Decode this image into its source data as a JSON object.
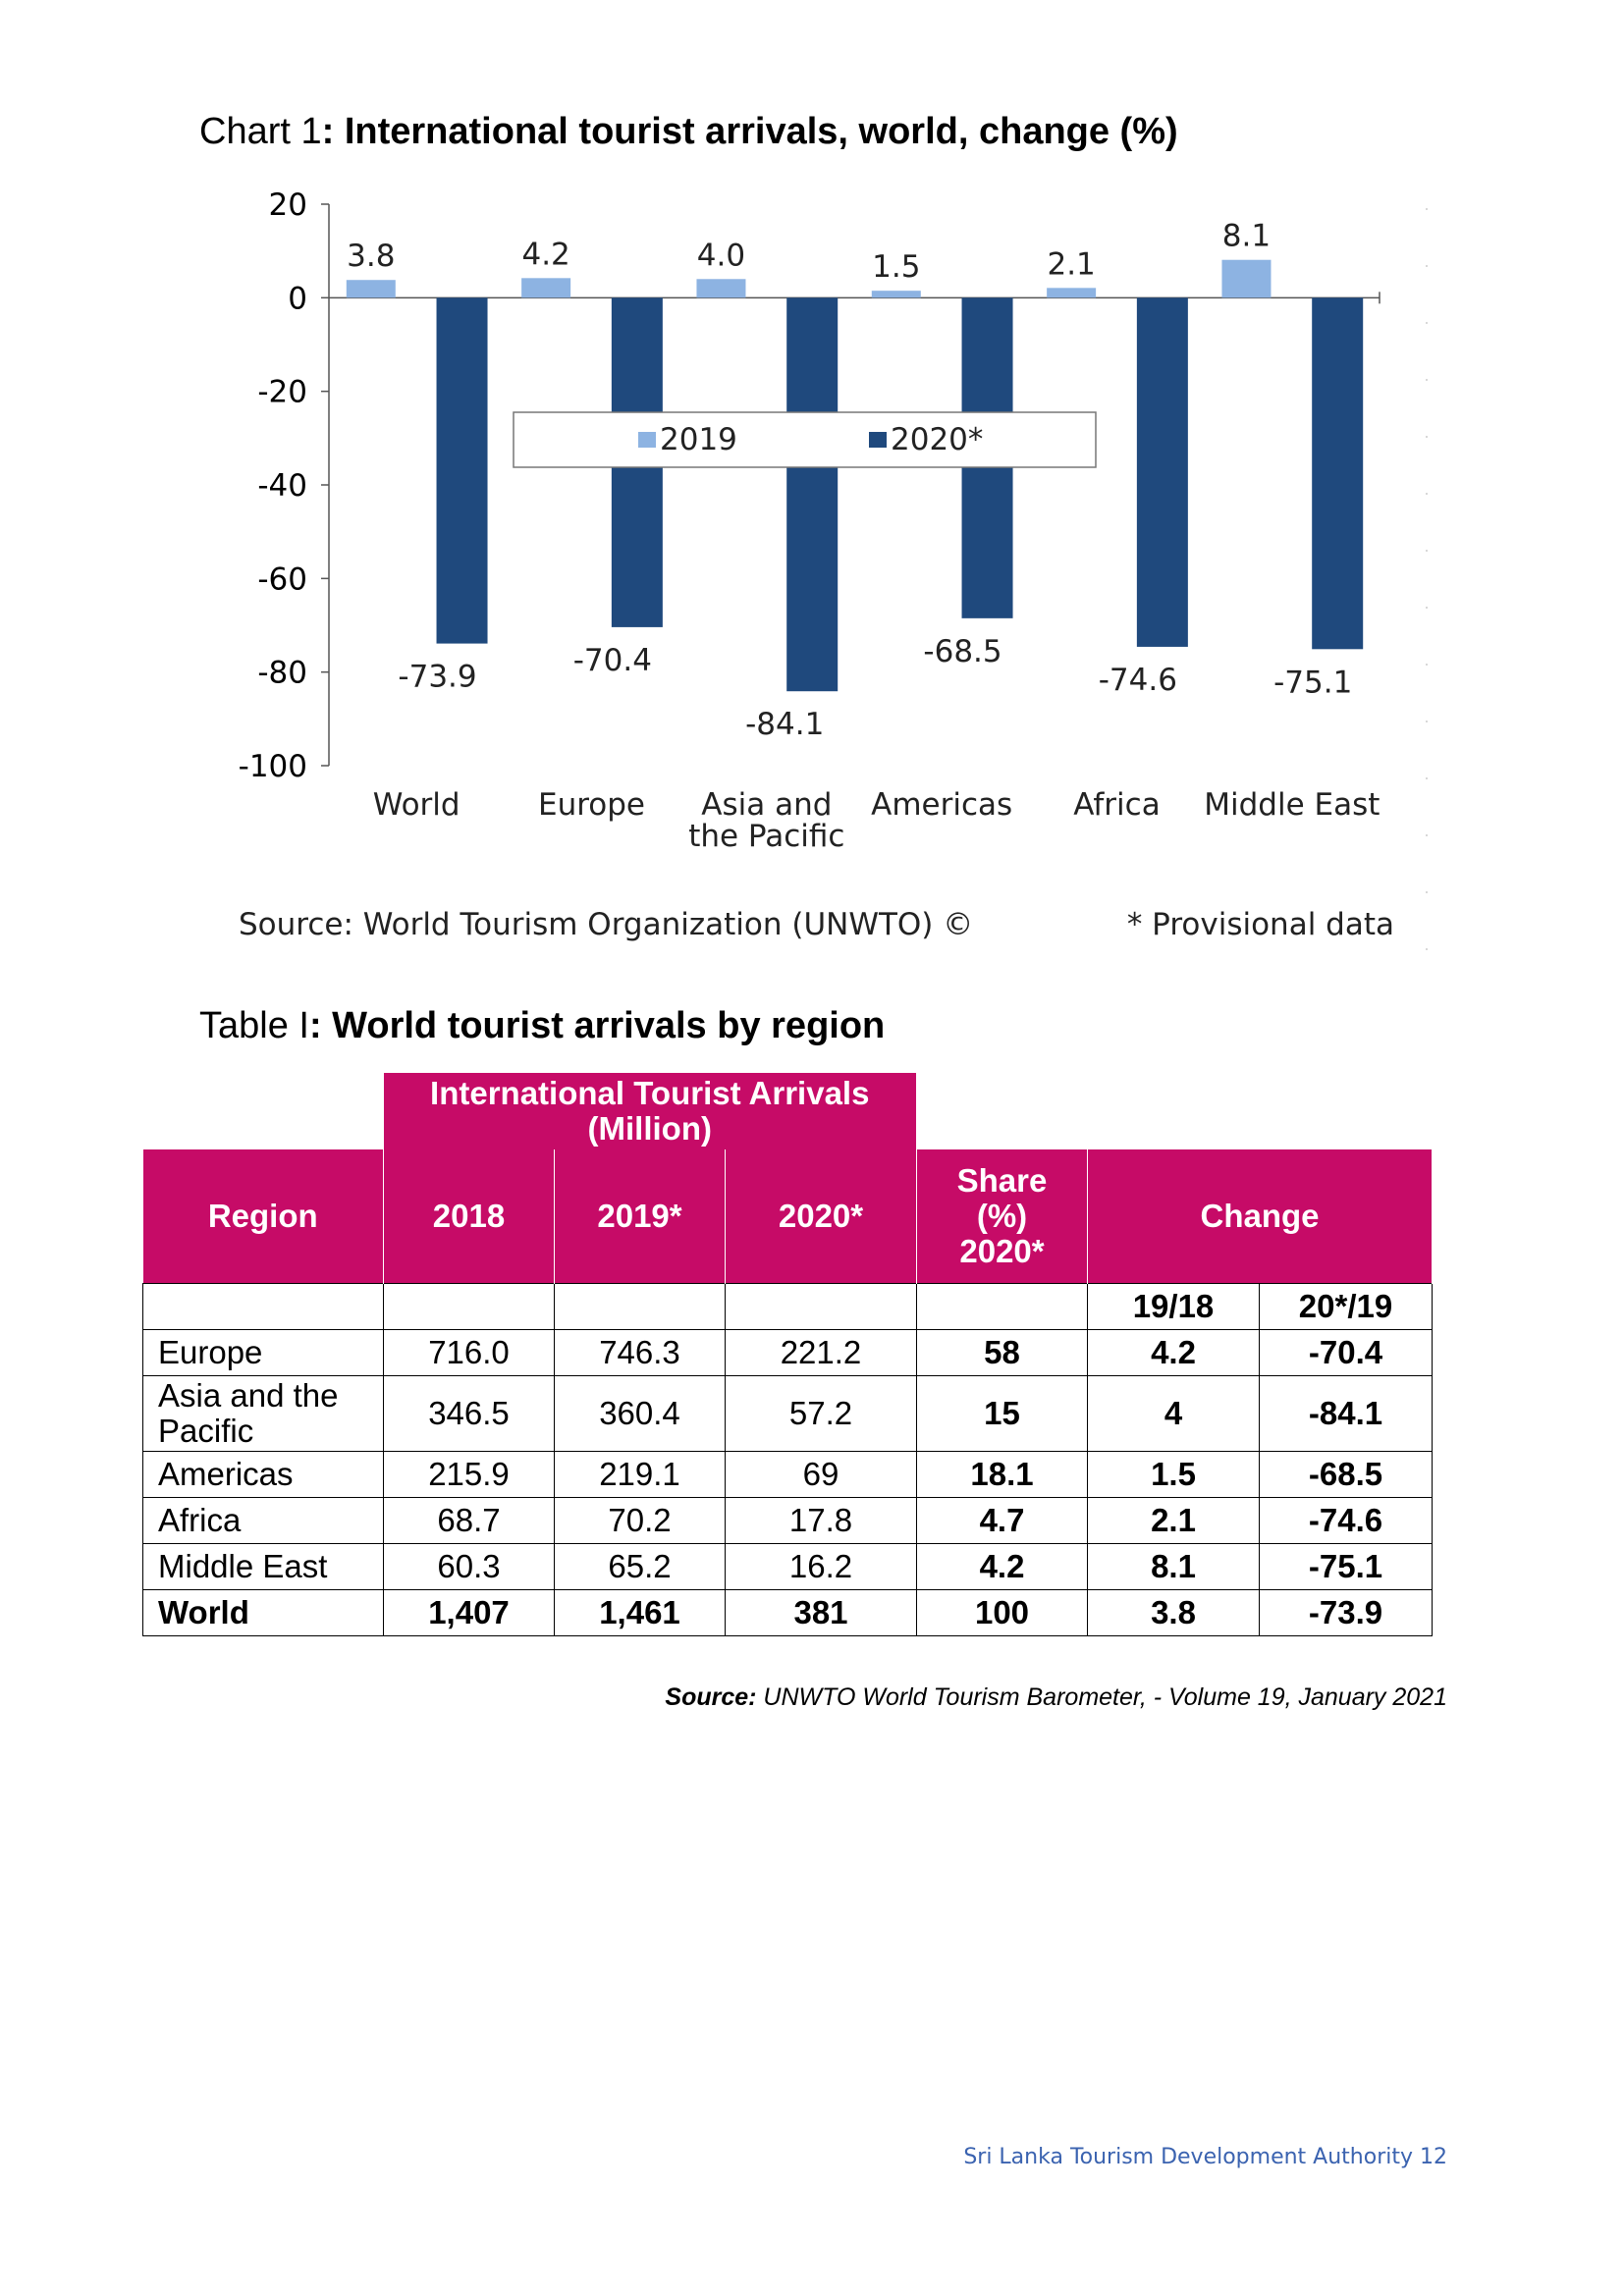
{
  "chart_heading": {
    "prefix": "Chart 1",
    "title": ": International tourist arrivals, world, change (%)"
  },
  "chart_data": {
    "type": "bar",
    "categories": [
      "World",
      "Europe",
      "Asia and the Pacific",
      "Americas",
      "Africa",
      "Middle East"
    ],
    "category_lines": [
      [
        "World"
      ],
      [
        "Europe"
      ],
      [
        "Asia and",
        "the Pacific"
      ],
      [
        "Americas"
      ],
      [
        "Africa"
      ],
      [
        "Middle East"
      ]
    ],
    "series": [
      {
        "name": "2019",
        "values": [
          3.8,
          4.2,
          4.0,
          1.5,
          2.1,
          8.1
        ],
        "labels": [
          "3.8",
          "4.2",
          "4.0",
          "1.5",
          "2.1",
          "8.1"
        ],
        "color": "#8db3e2"
      },
      {
        "name": "2020*",
        "values": [
          -73.9,
          -70.4,
          -84.1,
          -68.5,
          -74.6,
          -75.1
        ],
        "labels": [
          "-73.9",
          "-70.4",
          "-84.1",
          "-68.5",
          "-74.6",
          "-75.1"
        ],
        "color": "#1f497d"
      }
    ],
    "yticks": [
      "20",
      "0",
      "-20",
      "-40",
      "-60",
      "-80",
      "-100"
    ],
    "ylim": [
      -100,
      20
    ],
    "legend_position": "center",
    "source_text": "Source: World Tourism Organization (UNWTO) ©",
    "note_text": "* Provisional data"
  },
  "table_heading": {
    "prefix": "Table I",
    "title": ": World tourist arrivals by region"
  },
  "table": {
    "group_header": "International Tourist Arrivals (Million)",
    "headers": {
      "region": "Region",
      "y2018": "2018",
      "y2019": "2019*",
      "y2020": "2020*",
      "share": "Share (%) 2020*",
      "change": "Change"
    },
    "subheaders": {
      "c1": "19/18",
      "c2": "20*/19"
    },
    "rows": [
      {
        "region": "Europe",
        "y2018": "716.0",
        "y2019": "746.3",
        "y2020": "221.2",
        "share": "58",
        "c1": "4.2",
        "c2": "-70.4"
      },
      {
        "region": "Asia and the Pacific",
        "y2018": "346.5",
        "y2019": "360.4",
        "y2020": "57.2",
        "share": "15",
        "c1": "4",
        "c2": "-84.1"
      },
      {
        "region": "Americas",
        "y2018": "215.9",
        "y2019": "219.1",
        "y2020": "69",
        "share": "18.1",
        "c1": "1.5",
        "c2": "-68.5"
      },
      {
        "region": "Africa",
        "y2018": "68.7",
        "y2019": "70.2",
        "y2020": "17.8",
        "share": "4.7",
        "c1": "2.1",
        "c2": "-74.6"
      },
      {
        "region": "Middle East",
        "y2018": "60.3",
        "y2019": "65.2",
        "y2020": "16.2",
        "share": "4.2",
        "c1": "8.1",
        "c2": "-75.1"
      },
      {
        "region": "World",
        "y2018": "1,407",
        "y2019": "1,461",
        "y2020": "381",
        "share": "100",
        "c1": "3.8",
        "c2": "-73.9"
      }
    ]
  },
  "table_source": {
    "label": "Source:",
    "text": " UNWTO World Tourism Barometer, - Volume 19, January 2021"
  },
  "footer": "Sri Lanka Tourism Development Authority 12"
}
